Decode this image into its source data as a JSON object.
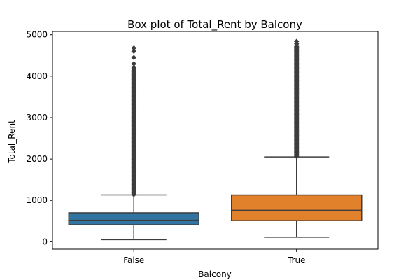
{
  "chart_data": {
    "type": "box",
    "title": "Box plot of Total_Rent by Balcony",
    "xlabel": "Balcony",
    "ylabel": "Total_Rent",
    "ylim": [
      -180,
      5080
    ],
    "yticks": [
      0,
      1000,
      2000,
      3000,
      4000,
      5000
    ],
    "grid": false,
    "categories": [
      "False",
      "True"
    ],
    "boxes": [
      {
        "category": "False",
        "whisker_low": 50,
        "q1": 410,
        "median": 520,
        "q3": 700,
        "whisker_high": 1130,
        "outlier_range": [
          1140,
          4150
        ],
        "outlier_sparse": [
          4200,
          4300,
          4450,
          4600,
          4680
        ],
        "color": "#3274a1"
      },
      {
        "category": "True",
        "whisker_low": 110,
        "q1": 510,
        "median": 760,
        "q3": 1130,
        "whisker_high": 2050,
        "outlier_range": [
          2060,
          4720
        ],
        "outlier_sparse": [
          4780,
          4840
        ],
        "color": "#e1812c"
      }
    ]
  }
}
